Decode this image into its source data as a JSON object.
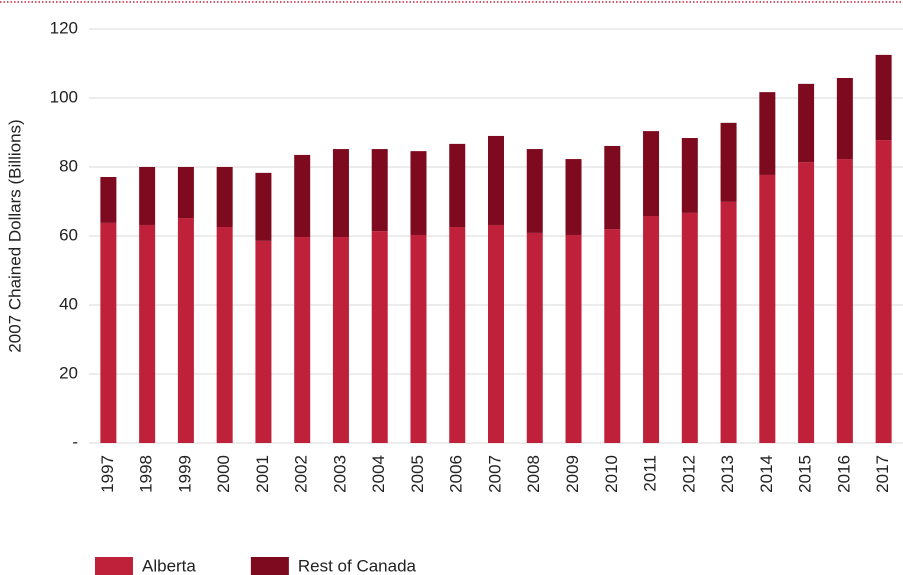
{
  "chart_data": {
    "type": "stacked_bar",
    "y_label": "2007 Chained Dollars (Billions)",
    "categories": [
      "1997",
      "1998",
      "1999",
      "2000",
      "2001",
      "2002",
      "2003",
      "2004",
      "2005",
      "2006",
      "2007",
      "2008",
      "2009",
      "2010",
      "2011",
      "2012",
      "2013",
      "2014",
      "2015",
      "2016",
      "2017"
    ],
    "series": [
      {
        "name": "Alberta",
        "color": "#c0213a",
        "values": [
          63.8,
          63.2,
          65.2,
          62.6,
          58.6,
          59.7,
          59.7,
          61.4,
          60.3,
          62.6,
          63.2,
          60.9,
          60.3,
          62.0,
          65.8,
          66.7,
          69.9,
          77.7,
          81.4,
          82.3,
          87.8
        ]
      },
      {
        "name": "Rest of Canada",
        "color": "#7d0a1e",
        "values": [
          13.3,
          16.8,
          14.8,
          17.4,
          19.7,
          23.8,
          25.5,
          23.8,
          24.3,
          24.1,
          25.8,
          24.3,
          22.0,
          24.1,
          24.6,
          21.7,
          22.9,
          24.0,
          22.7,
          23.5,
          24.7
        ]
      }
    ],
    "ylim": [
      0,
      120
    ],
    "yticks": [
      {
        "value": 0,
        "label": "-"
      },
      20,
      40,
      60,
      80,
      100,
      120
    ],
    "grid": true,
    "legend": "bottom-left"
  }
}
